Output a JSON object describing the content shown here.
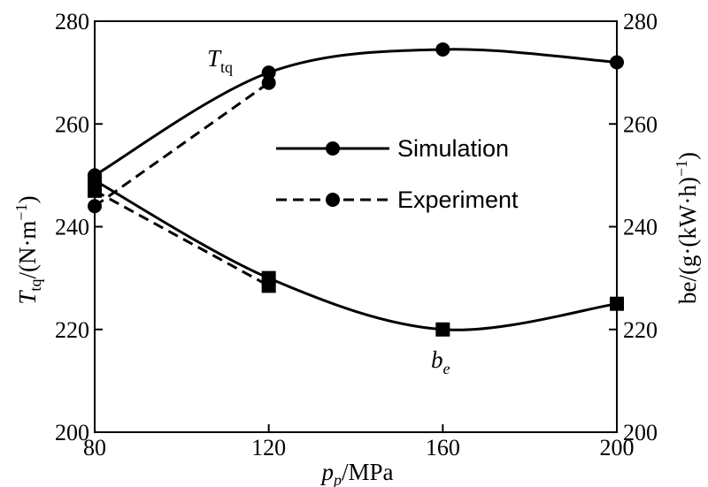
{
  "chart_data": {
    "type": "line",
    "x": [
      80,
      120,
      160,
      200
    ],
    "xlim": [
      80,
      200
    ],
    "xticks": [
      "80",
      "120",
      "160",
      "200"
    ],
    "xlabel": {
      "main": "p",
      "sub": "p",
      "unit": "/MPa"
    },
    "ylim_left": [
      200,
      280
    ],
    "ylim_right": [
      200,
      280
    ],
    "yticks_left": [
      "200",
      "220",
      "240",
      "260",
      "280"
    ],
    "yticks_right": [
      "200",
      "220",
      "240",
      "260",
      "280"
    ],
    "ylabel_left": {
      "main": "T",
      "sub": "tq",
      "unit": "/(N·m",
      "sup": "−1",
      "close": ")"
    },
    "ylabel_right": {
      "text": "be/(g·(kW·h)",
      "sup": "−1",
      "close": ")"
    },
    "grid": false,
    "legend": {
      "position": "center",
      "entries": [
        {
          "label": "Simulation",
          "style": "solid"
        },
        {
          "label": "Experiment",
          "style": "dashed"
        }
      ]
    },
    "series": [
      {
        "group": "torque",
        "style": "solid",
        "marker": "circle",
        "axis": "left",
        "x": [
          80,
          120,
          160,
          200
        ],
        "values": [
          250,
          270,
          274.5,
          272
        ]
      },
      {
        "group": "torque",
        "style": "dashed",
        "marker": "circle",
        "axis": "left",
        "x": [
          80,
          120
        ],
        "values": [
          244,
          268
        ]
      },
      {
        "group": "be",
        "style": "solid",
        "marker": "square",
        "axis": "right",
        "x": [
          80,
          120,
          160,
          200
        ],
        "values": [
          249,
          230,
          220,
          225
        ]
      },
      {
        "group": "be",
        "style": "dashed",
        "marker": "square",
        "axis": "right",
        "x": [
          80,
          120
        ],
        "values": [
          247,
          228.5
        ]
      }
    ],
    "annotations": [
      {
        "main": "T",
        "sub": "tq",
        "x": 106,
        "y": 277
      },
      {
        "main": "b",
        "sub": "e",
        "x": 160,
        "y": 212
      }
    ]
  }
}
